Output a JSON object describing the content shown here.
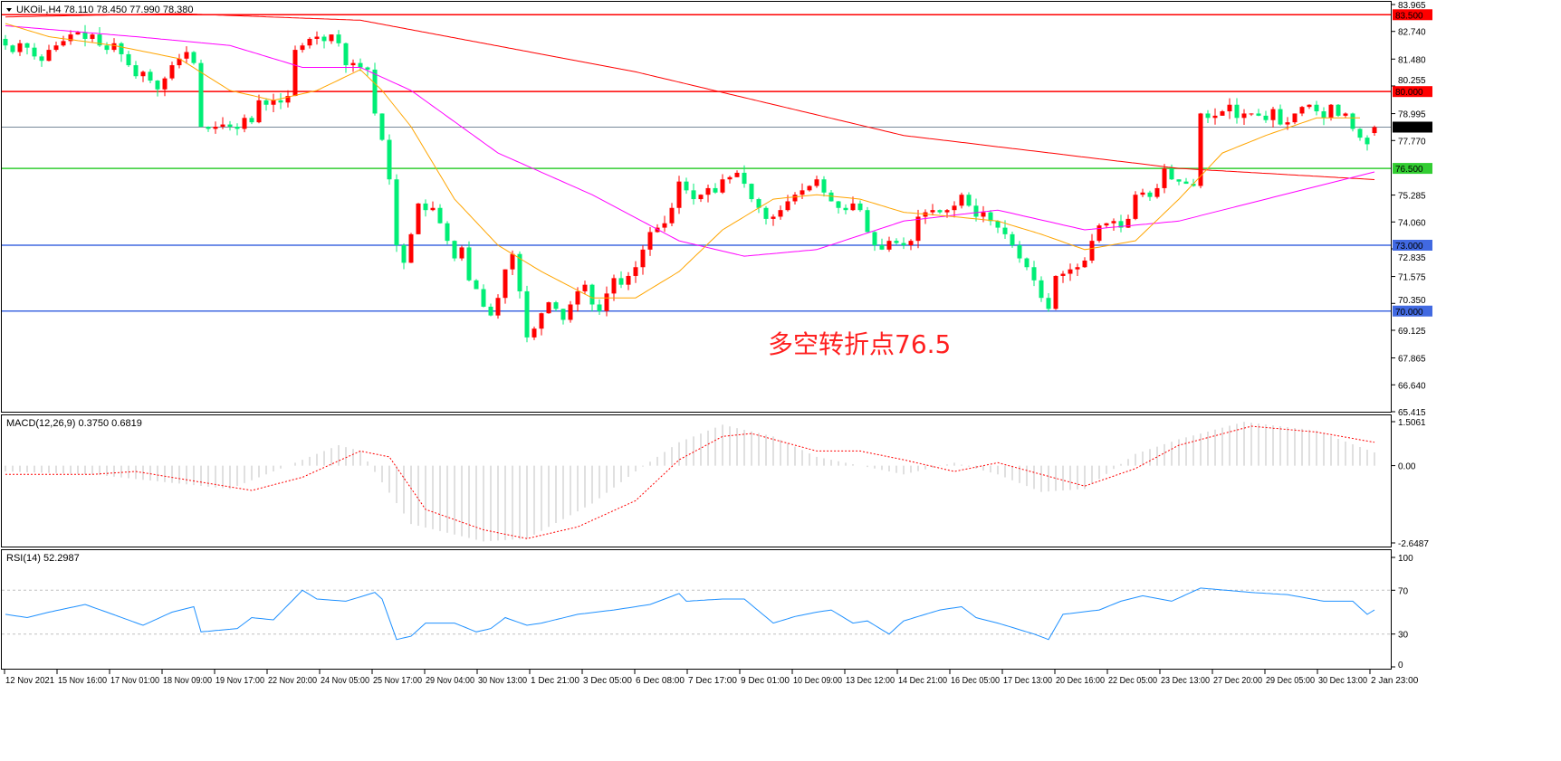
{
  "header": {
    "symbol_label": "UKOil-,H4  78.110 78.450 77.990 78.380"
  },
  "macd_label": "MACD(12,26,9) 0.3750 0.6819",
  "rsi_label": "RSI(14) 52.2987",
  "annotation": "多空转折点76.5",
  "colors": {
    "up": "#ff0000",
    "down": "#00ee76",
    "ma_fast": "#ffa500",
    "ma_mid": "#ff00ff",
    "ma_slow": "#ff0000",
    "macd_hist": "#c0c0c0",
    "macd_signal": "#ff0000",
    "rsi": "#1e90ff"
  },
  "chart_data": [
    {
      "type": "candlestick",
      "title": "UKOil-,H4",
      "ylim": [
        65.415,
        83.965
      ],
      "y_ticks": [
        "83.965",
        "82.740",
        "81.480",
        "80.255",
        "78.995",
        "77.770",
        "75.285",
        "74.060",
        "72.835",
        "71.575",
        "70.350",
        "69.125",
        "67.865",
        "66.640",
        "65.415"
      ],
      "x_ticks": [
        "12 Nov 2021",
        "15 Nov 16:00",
        "17 Nov 01:00",
        "18 Nov 09:00",
        "19 Nov 17:00",
        "22 Nov 20:00",
        "24 Nov 05:00",
        "25 Nov 17:00",
        "29 Nov 04:00",
        "30 Nov 13:00",
        "1 Dec 21:00",
        "3 Dec 05:00",
        "6 Dec 08:00",
        "7 Dec 17:00",
        "9 Dec 01:00",
        "10 Dec 09:00",
        "13 Dec 12:00",
        "14 Dec 21:00",
        "16 Dec 05:00",
        "17 Dec 13:00",
        "20 Dec 16:00",
        "22 Dec 05:00",
        "23 Dec 13:00",
        "27 Dec 20:00",
        "29 Dec 05:00",
        "30 Dec 13:00",
        "2 Jan 23:00"
      ],
      "last": {
        "open": 78.11,
        "high": 78.45,
        "low": 77.99,
        "close": 78.38
      },
      "close": [
        82.1,
        81.8,
        82.2,
        82.0,
        81.6,
        81.4,
        81.9,
        82.1,
        82.3,
        82.6,
        82.7,
        82.4,
        82.6,
        82.1,
        81.9,
        82.2,
        81.7,
        81.2,
        80.7,
        80.9,
        80.5,
        80.1,
        80.6,
        81.2,
        81.5,
        81.8,
        81.3,
        78.4,
        78.3,
        78.4,
        78.5,
        78.4,
        78.3,
        78.8,
        78.6,
        79.6,
        79.4,
        79.6,
        79.5,
        79.8,
        81.9,
        82.1,
        82.4,
        82.5,
        82.3,
        82.6,
        82.2,
        81.2,
        81.3,
        81.1,
        81.0,
        79.0,
        77.8,
        76.0,
        73.0,
        72.2,
        73.5,
        74.9,
        74.6,
        74.7,
        74.0,
        73.2,
        72.4,
        72.9,
        71.4,
        71.0,
        70.2,
        69.8,
        70.6,
        71.9,
        72.6,
        70.9,
        68.8,
        69.2,
        69.9,
        70.4,
        70.1,
        69.6,
        70.3,
        70.9,
        71.2,
        70.3,
        70.0,
        70.8,
        71.5,
        71.2,
        71.6,
        72.0,
        72.8,
        73.6,
        73.8,
        74.0,
        74.7,
        75.9,
        75.5,
        75.1,
        75.3,
        75.6,
        75.4,
        76.0,
        76.1,
        76.3,
        75.8,
        75.1,
        74.7,
        74.2,
        74.3,
        74.6,
        75.0,
        75.3,
        75.5,
        75.7,
        76.0,
        75.4,
        75.0,
        74.7,
        74.6,
        74.9,
        74.6,
        73.6,
        73.0,
        72.8,
        73.2,
        73.1,
        73.0,
        73.2,
        74.3,
        74.5,
        74.6,
        74.5,
        74.6,
        74.8,
        75.3,
        74.8,
        74.3,
        74.5,
        74.1,
        73.8,
        73.5,
        73.0,
        72.4,
        72.0,
        71.4,
        70.6,
        70.1,
        71.6,
        71.7,
        71.9,
        72.0,
        72.3,
        73.2,
        73.9,
        74.0,
        74.1,
        73.8,
        74.2,
        75.3,
        75.4,
        75.2,
        75.6,
        76.5,
        76.0,
        75.9,
        75.8,
        75.7,
        79.0,
        78.8,
        78.9,
        79.1,
        79.4,
        78.8,
        79.0,
        79.0,
        78.9,
        78.7,
        79.2,
        78.5,
        78.6,
        79.0,
        79.3,
        79.4,
        79.1,
        78.8,
        79.4,
        78.9,
        79.0,
        78.3,
        77.9,
        77.6,
        78.38
      ],
      "moving_averages": {
        "slow": [
          [
            0,
            83.4
          ],
          [
            24,
            83.55
          ],
          [
            49,
            83.25
          ],
          [
            87,
            80.9
          ],
          [
            124,
            78.0
          ],
          [
            162,
            76.5
          ],
          [
            189,
            75.99
          ]
        ],
        "mid": [
          [
            0,
            83.0
          ],
          [
            18,
            82.5
          ],
          [
            31,
            82.1
          ],
          [
            41,
            81.1
          ],
          [
            49,
            81.1
          ],
          [
            56,
            80.05
          ],
          [
            68,
            77.2
          ],
          [
            81,
            75.3
          ],
          [
            93,
            73.2
          ],
          [
            102,
            72.5
          ],
          [
            112,
            72.8
          ],
          [
            124,
            74.1
          ],
          [
            137,
            74.6
          ],
          [
            149,
            73.7
          ],
          [
            162,
            74.1
          ],
          [
            174,
            75.1
          ],
          [
            189,
            76.34
          ]
        ],
        "fast": [
          [
            0,
            83.1
          ],
          [
            6,
            82.5
          ],
          [
            15,
            82.1
          ],
          [
            24,
            81.5
          ],
          [
            31,
            80.05
          ],
          [
            37,
            79.6
          ],
          [
            43,
            80.05
          ],
          [
            49,
            81.0
          ],
          [
            52,
            80.05
          ],
          [
            56,
            78.4
          ],
          [
            62,
            75.1
          ],
          [
            68,
            73.0
          ],
          [
            74,
            71.8
          ],
          [
            81,
            70.6
          ],
          [
            87,
            70.6
          ],
          [
            93,
            71.8
          ],
          [
            99,
            73.7
          ],
          [
            106,
            75.1
          ],
          [
            112,
            75.3
          ],
          [
            118,
            75.1
          ],
          [
            124,
            74.5
          ],
          [
            131,
            74.3
          ],
          [
            137,
            74.1
          ],
          [
            143,
            73.5
          ],
          [
            149,
            72.8
          ],
          [
            156,
            73.2
          ],
          [
            162,
            75.1
          ],
          [
            168,
            77.2
          ],
          [
            174,
            78.0
          ],
          [
            181,
            78.8
          ],
          [
            187,
            78.8
          ]
        ]
      },
      "levels": [
        {
          "price": 83.5,
          "label": "83.500",
          "color": "#ff0000"
        },
        {
          "price": 80.0,
          "label": "80.000",
          "color": "#ff0000"
        },
        {
          "price": 78.38,
          "label": "78.380",
          "color": "#000000",
          "line": "#778899"
        },
        {
          "price": 76.5,
          "label": "76.500",
          "color": "#32cd32"
        },
        {
          "price": 73.0,
          "label": "73.000",
          "color": "#4169e1"
        },
        {
          "price": 70.0,
          "label": "70.000",
          "color": "#4169e1"
        }
      ]
    },
    {
      "type": "bar",
      "title": "MACD(12,26,9)",
      "ylim": [
        -2.6487,
        1.5061
      ],
      "y_ticks": [
        "1.5061",
        "0.00",
        "-2.6487"
      ],
      "histogram": [
        [
          0,
          -0.2
        ],
        [
          12,
          -0.3
        ],
        [
          31,
          -0.8
        ],
        [
          46,
          0.7
        ],
        [
          49,
          0.5
        ],
        [
          56,
          -2.0
        ],
        [
          66,
          -2.6
        ],
        [
          72,
          -2.5
        ],
        [
          81,
          -1.3
        ],
        [
          87,
          -0.2
        ],
        [
          93,
          0.8
        ],
        [
          99,
          1.4
        ],
        [
          106,
          1.0
        ],
        [
          112,
          0.3
        ],
        [
          118,
          0.0
        ],
        [
          124,
          -0.3
        ],
        [
          131,
          0.1
        ],
        [
          137,
          -0.3
        ],
        [
          143,
          -0.9
        ],
        [
          149,
          -0.8
        ],
        [
          156,
          0.4
        ],
        [
          162,
          0.9
        ],
        [
          171,
          1.5
        ],
        [
          181,
          1.2
        ],
        [
          189,
          0.45
        ]
      ],
      "signal": [
        [
          0,
          -0.3
        ],
        [
          12,
          -0.3
        ],
        [
          18,
          -0.2
        ],
        [
          34,
          -0.85
        ],
        [
          41,
          -0.4
        ],
        [
          49,
          0.5
        ],
        [
          53,
          0.3
        ],
        [
          58,
          -1.5
        ],
        [
          66,
          -2.2
        ],
        [
          72,
          -2.5
        ],
        [
          79,
          -2.1
        ],
        [
          87,
          -1.2
        ],
        [
          93,
          0.2
        ],
        [
          99,
          1.0
        ],
        [
          103,
          1.1
        ],
        [
          112,
          0.5
        ],
        [
          118,
          0.5
        ],
        [
          124,
          0.2
        ],
        [
          131,
          -0.2
        ],
        [
          137,
          0.1
        ],
        [
          149,
          -0.7
        ],
        [
          156,
          -0.1
        ],
        [
          162,
          0.7
        ],
        [
          172,
          1.35
        ],
        [
          181,
          1.15
        ],
        [
          189,
          0.8
        ]
      ]
    },
    {
      "type": "line",
      "title": "RSI(14)",
      "ylim": [
        0,
        100
      ],
      "y_ticks": [
        "100",
        "70",
        "30",
        "0"
      ],
      "levels": [
        70,
        30
      ],
      "values": [
        [
          0,
          48
        ],
        [
          3,
          45
        ],
        [
          6,
          50
        ],
        [
          11,
          57
        ],
        [
          14,
          50
        ],
        [
          19,
          38
        ],
        [
          23,
          50
        ],
        [
          26,
          55
        ],
        [
          27,
          32
        ],
        [
          32,
          35
        ],
        [
          34,
          45
        ],
        [
          37,
          43
        ],
        [
          41,
          70
        ],
        [
          43,
          62
        ],
        [
          47,
          60
        ],
        [
          51,
          68
        ],
        [
          52,
          62
        ],
        [
          54,
          25
        ],
        [
          56,
          28
        ],
        [
          58,
          40
        ],
        [
          62,
          40
        ],
        [
          65,
          32
        ],
        [
          67,
          35
        ],
        [
          69,
          45
        ],
        [
          72,
          38
        ],
        [
          74,
          40
        ],
        [
          79,
          48
        ],
        [
          84,
          52
        ],
        [
          89,
          57
        ],
        [
          93,
          67
        ],
        [
          94,
          60
        ],
        [
          99,
          62
        ],
        [
          102,
          62
        ],
        [
          106,
          40
        ],
        [
          109,
          46
        ],
        [
          112,
          50
        ],
        [
          114,
          52
        ],
        [
          117,
          40
        ],
        [
          119,
          42
        ],
        [
          122,
          30
        ],
        [
          124,
          42
        ],
        [
          129,
          52
        ],
        [
          132,
          55
        ],
        [
          134,
          45
        ],
        [
          137,
          40
        ],
        [
          142,
          30
        ],
        [
          144,
          25
        ],
        [
          146,
          48
        ],
        [
          151,
          52
        ],
        [
          154,
          60
        ],
        [
          157,
          65
        ],
        [
          161,
          60
        ],
        [
          165,
          72
        ],
        [
          172,
          68
        ],
        [
          177,
          66
        ],
        [
          182,
          60
        ],
        [
          186,
          60
        ],
        [
          188,
          48
        ],
        [
          189,
          52
        ]
      ]
    }
  ]
}
